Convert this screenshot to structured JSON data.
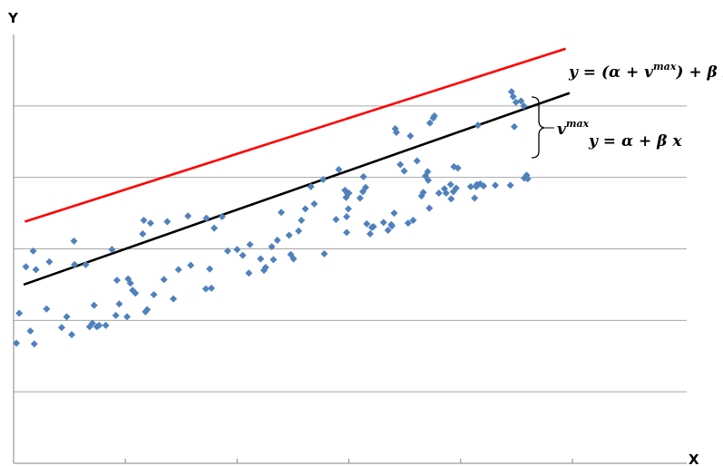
{
  "chart_data": {
    "type": "scatter",
    "xlabel": "X",
    "ylabel": "Y",
    "xlim": [
      0,
      100
    ],
    "ylim": [
      0,
      60
    ],
    "grid": true,
    "gridlines_y": [
      10,
      20,
      30,
      40,
      50
    ],
    "ticks_x": [
      0,
      20,
      40,
      60,
      80,
      100
    ],
    "marker_color": "#4F81BD",
    "series": [
      {
        "points": [
          [
            0.5,
            16.8
          ],
          [
            1.0,
            21.0
          ],
          [
            2.2,
            27.5
          ],
          [
            3.0,
            18.5
          ],
          [
            3.5,
            29.7
          ],
          [
            3.7,
            16.7
          ],
          [
            4.0,
            27.1
          ],
          [
            5.9,
            21.6
          ],
          [
            6.4,
            28.2
          ],
          [
            8.6,
            19.0
          ],
          [
            9.5,
            20.5
          ],
          [
            10.4,
            18.0
          ],
          [
            10.8,
            31.1
          ],
          [
            10.9,
            27.8
          ],
          [
            12.9,
            27.8
          ],
          [
            13.6,
            19.1
          ],
          [
            14.1,
            19.6
          ],
          [
            14.4,
            22.1
          ],
          [
            14.9,
            19.1
          ],
          [
            15.3,
            19.3
          ],
          [
            16.5,
            19.3
          ],
          [
            17.6,
            29.9
          ],
          [
            18.3,
            20.7
          ],
          [
            18.5,
            25.6
          ],
          [
            18.9,
            22.3
          ],
          [
            20.3,
            20.5
          ],
          [
            20.5,
            25.8
          ],
          [
            20.9,
            25.2
          ],
          [
            21.3,
            24.2
          ],
          [
            21.8,
            23.8
          ],
          [
            23.1,
            32.1
          ],
          [
            23.3,
            34.0
          ],
          [
            23.6,
            21.2
          ],
          [
            23.9,
            21.5
          ],
          [
            24.5,
            33.6
          ],
          [
            25.1,
            23.6
          ],
          [
            26.9,
            25.7
          ],
          [
            27.5,
            33.8
          ],
          [
            28.6,
            23.0
          ],
          [
            29.5,
            27.1
          ],
          [
            31.2,
            34.6
          ],
          [
            31.7,
            27.7
          ],
          [
            34.4,
            24.4
          ],
          [
            34.5,
            34.3
          ],
          [
            35.1,
            27.2
          ],
          [
            35.4,
            24.5
          ],
          [
            35.9,
            32.9
          ],
          [
            37.3,
            34.5
          ],
          [
            38.3,
            29.7
          ],
          [
            40.0,
            29.9
          ],
          [
            41.0,
            29.1
          ],
          [
            42.1,
            26.6
          ],
          [
            42.3,
            30.6
          ],
          [
            44.2,
            28.6
          ],
          [
            44.8,
            27.0
          ],
          [
            45.1,
            27.4
          ],
          [
            46.2,
            30.3
          ],
          [
            46.5,
            28.5
          ],
          [
            47.2,
            31.2
          ],
          [
            47.9,
            35.1
          ],
          [
            49.3,
            31.9
          ],
          [
            49.6,
            29.2
          ],
          [
            50.1,
            28.6
          ],
          [
            51.0,
            32.5
          ],
          [
            51.5,
            34.0
          ],
          [
            52.2,
            35.6
          ],
          [
            53.2,
            38.7
          ],
          [
            53.8,
            36.3
          ],
          [
            55.4,
            39.7
          ],
          [
            55.6,
            29.3
          ],
          [
            57.7,
            34.1
          ],
          [
            58.2,
            41.1
          ],
          [
            59.3,
            38.2
          ],
          [
            59.5,
            37.2
          ],
          [
            59.6,
            32.3
          ],
          [
            59.6,
            34.5
          ],
          [
            59.7,
            37.8
          ],
          [
            59.9,
            35.6
          ],
          [
            60.0,
            37.8
          ],
          [
            62.0,
            37.1
          ],
          [
            62.5,
            38.0
          ],
          [
            62.6,
            40.1
          ],
          [
            63.0,
            38.6
          ],
          [
            63.2,
            33.5
          ],
          [
            63.8,
            32.1
          ],
          [
            64.1,
            33.0
          ],
          [
            64.4,
            33.1
          ],
          [
            66.2,
            33.7
          ],
          [
            67.0,
            32.6
          ],
          [
            67.6,
            33.4
          ],
          [
            67.7,
            33.2
          ],
          [
            68.1,
            35.0
          ],
          [
            68.3,
            46.8
          ],
          [
            68.5,
            46.3
          ],
          [
            69.2,
            41.8
          ],
          [
            69.9,
            40.9
          ],
          [
            70.6,
            33.6
          ],
          [
            71.0,
            45.8
          ],
          [
            71.5,
            34.0
          ],
          [
            72.2,
            42.3
          ],
          [
            73.0,
            37.4
          ],
          [
            73.3,
            37.9
          ],
          [
            73.7,
            40.2
          ],
          [
            74.1,
            40.8
          ],
          [
            74.2,
            39.6
          ],
          [
            74.4,
            35.7
          ],
          [
            74.5,
            47.6
          ],
          [
            75.1,
            48.3
          ],
          [
            75.3,
            48.6
          ],
          [
            76.1,
            37.8
          ],
          [
            77.1,
            38.4
          ],
          [
            77.4,
            37.8
          ],
          [
            78.2,
            39.0
          ],
          [
            78.3,
            37.0
          ],
          [
            78.7,
            38.0
          ],
          [
            78.8,
            41.5
          ],
          [
            79.2,
            38.5
          ],
          [
            79.5,
            41.3
          ],
          [
            81.8,
            38.7
          ],
          [
            82.5,
            37.1
          ],
          [
            82.8,
            38.7
          ],
          [
            82.9,
            39.0
          ],
          [
            83.1,
            47.3
          ],
          [
            83.5,
            39.1
          ],
          [
            84.1,
            38.8
          ],
          [
            86.2,
            38.9
          ],
          [
            88.9,
            38.9
          ],
          [
            89.1,
            52.0
          ],
          [
            89.4,
            51.3
          ],
          [
            89.6,
            47.1
          ],
          [
            89.9,
            50.5
          ],
          [
            90.8,
            50.7
          ],
          [
            91.3,
            50.0
          ],
          [
            91.4,
            39.9
          ],
          [
            91.8,
            40.3
          ],
          [
            92.0,
            39.8
          ]
        ]
      },
      {
        "type": "line",
        "color": "#000000",
        "points": [
          [
            1.8,
            25
          ],
          [
            99.5,
            51.8
          ]
        ]
      },
      {
        "type": "line",
        "color": "#FF0000",
        "points": [
          [
            2.0,
            33.8
          ],
          [
            98.8,
            58.0
          ]
        ]
      }
    ],
    "annotations": [
      {
        "text": "y = (α + vmax) + β x"
      },
      {
        "text": "y = α + β x"
      },
      {
        "text": "vmax"
      }
    ]
  }
}
